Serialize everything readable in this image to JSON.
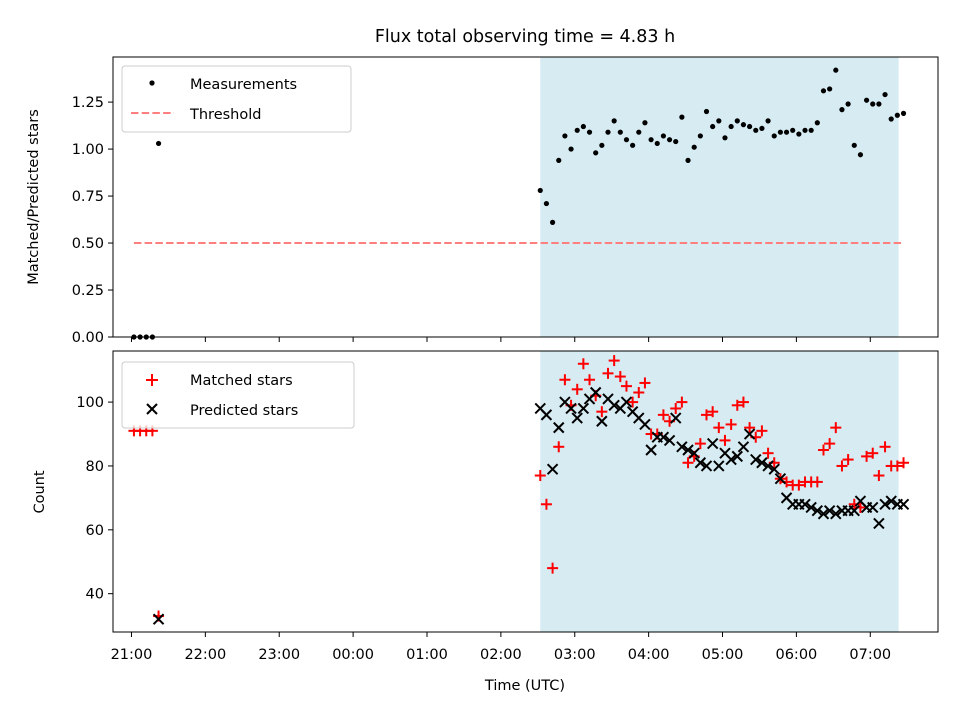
{
  "chart_data": {
    "type": "scatter",
    "title": "Flux total observing time = 4.83 h",
    "xlabel": "Time (UTC)",
    "x_ticks": [
      "21:00",
      "22:00",
      "23:00",
      "00:00",
      "01:00",
      "02:00",
      "03:00",
      "04:00",
      "05:00",
      "06:00",
      "07:00"
    ],
    "x_domain": [
      "20:45",
      "07:55"
    ],
    "highlight_span": {
      "start": "02:32",
      "end": "07:23",
      "color": "#add8e6"
    },
    "top_panel": {
      "ylabel": "Matched/Predicted stars",
      "ylim": [
        0,
        1.49
      ],
      "y_ticks": [
        "0.00",
        "0.25",
        "0.50",
        "0.75",
        "1.00",
        "1.25"
      ],
      "legend": {
        "placement": "top-left",
        "entries": [
          "Measurements",
          "Threshold"
        ]
      },
      "threshold": {
        "name": "Threshold",
        "value": 0.5,
        "x_start": "21:02",
        "x_end": "07:25",
        "color": "#ff7f7f"
      },
      "measurements": {
        "name": "Measurements",
        "color": "#000000",
        "points": [
          [
            "21:02",
            0.0
          ],
          [
            "21:07",
            0.0
          ],
          [
            "21:12",
            0.0
          ],
          [
            "21:17",
            0.0
          ],
          [
            "21:22",
            1.03
          ],
          [
            "02:32",
            0.78
          ],
          [
            "02:37",
            0.71
          ],
          [
            "02:42",
            0.61
          ],
          [
            "02:47",
            0.94
          ],
          [
            "02:52",
            1.07
          ],
          [
            "02:57",
            1.0
          ],
          [
            "03:02",
            1.1
          ],
          [
            "03:07",
            1.12
          ],
          [
            "03:12",
            1.09
          ],
          [
            "03:17",
            0.98
          ],
          [
            "03:22",
            1.02
          ],
          [
            "03:27",
            1.09
          ],
          [
            "03:32",
            1.15
          ],
          [
            "03:37",
            1.09
          ],
          [
            "03:42",
            1.05
          ],
          [
            "03:47",
            1.02
          ],
          [
            "03:52",
            1.09
          ],
          [
            "03:57",
            1.14
          ],
          [
            "04:02",
            1.05
          ],
          [
            "04:07",
            1.03
          ],
          [
            "04:12",
            1.07
          ],
          [
            "04:17",
            1.05
          ],
          [
            "04:22",
            1.04
          ],
          [
            "04:27",
            1.17
          ],
          [
            "04:32",
            0.94
          ],
          [
            "04:37",
            1.01
          ],
          [
            "04:42",
            1.07
          ],
          [
            "04:47",
            1.2
          ],
          [
            "04:52",
            1.12
          ],
          [
            "04:57",
            1.15
          ],
          [
            "05:02",
            1.06
          ],
          [
            "05:07",
            1.12
          ],
          [
            "05:12",
            1.15
          ],
          [
            "05:17",
            1.13
          ],
          [
            "05:22",
            1.12
          ],
          [
            "05:27",
            1.1
          ],
          [
            "05:32",
            1.11
          ],
          [
            "05:37",
            1.15
          ],
          [
            "05:42",
            1.07
          ],
          [
            "05:47",
            1.09
          ],
          [
            "05:52",
            1.09
          ],
          [
            "05:57",
            1.1
          ],
          [
            "06:02",
            1.08
          ],
          [
            "06:07",
            1.1
          ],
          [
            "06:12",
            1.1
          ],
          [
            "06:17",
            1.14
          ],
          [
            "06:22",
            1.31
          ],
          [
            "06:27",
            1.32
          ],
          [
            "06:32",
            1.42
          ],
          [
            "06:37",
            1.21
          ],
          [
            "06:42",
            1.24
          ],
          [
            "06:47",
            1.02
          ],
          [
            "06:52",
            0.97
          ],
          [
            "06:57",
            1.26
          ],
          [
            "07:02",
            1.24
          ],
          [
            "07:07",
            1.24
          ],
          [
            "07:12",
            1.29
          ],
          [
            "07:17",
            1.16
          ],
          [
            "07:22",
            1.18
          ],
          [
            "07:27",
            1.19
          ]
        ]
      }
    },
    "bottom_panel": {
      "ylabel": "Count",
      "ylim": [
        28,
        116
      ],
      "y_ticks": [
        "40",
        "60",
        "80",
        "100"
      ],
      "legend": {
        "placement": "top-left",
        "entries": [
          "Matched stars",
          "Predicted stars"
        ]
      },
      "matched": {
        "name": "Matched stars",
        "color": "#ff0000",
        "points": [
          [
            "21:02",
            91
          ],
          [
            "21:07",
            91
          ],
          [
            "21:12",
            91
          ],
          [
            "21:17",
            91
          ],
          [
            "21:22",
            33
          ],
          [
            "02:32",
            77
          ],
          [
            "02:37",
            68
          ],
          [
            "02:42",
            48
          ],
          [
            "02:47",
            86
          ],
          [
            "02:52",
            107
          ],
          [
            "02:57",
            99
          ],
          [
            "03:02",
            104
          ],
          [
            "03:07",
            112
          ],
          [
            "03:12",
            107
          ],
          [
            "03:17",
            102
          ],
          [
            "03:22",
            97
          ],
          [
            "03:27",
            109
          ],
          [
            "03:32",
            113
          ],
          [
            "03:37",
            108
          ],
          [
            "03:42",
            105
          ],
          [
            "03:47",
            100
          ],
          [
            "03:52",
            103
          ],
          [
            "03:57",
            106
          ],
          [
            "04:02",
            90
          ],
          [
            "04:07",
            90
          ],
          [
            "04:12",
            96
          ],
          [
            "04:17",
            94
          ],
          [
            "04:22",
            98
          ],
          [
            "04:27",
            100
          ],
          [
            "04:32",
            81
          ],
          [
            "04:37",
            83
          ],
          [
            "04:42",
            87
          ],
          [
            "04:47",
            96
          ],
          [
            "04:52",
            97
          ],
          [
            "04:57",
            92
          ],
          [
            "05:02",
            88
          ],
          [
            "05:07",
            93
          ],
          [
            "05:12",
            99
          ],
          [
            "05:17",
            100
          ],
          [
            "05:22",
            92
          ],
          [
            "05:27",
            89
          ],
          [
            "05:32",
            91
          ],
          [
            "05:37",
            84
          ],
          [
            "05:42",
            81
          ],
          [
            "05:47",
            76
          ],
          [
            "05:52",
            75
          ],
          [
            "05:57",
            74
          ],
          [
            "06:02",
            74
          ],
          [
            "06:07",
            75
          ],
          [
            "06:12",
            75
          ],
          [
            "06:17",
            75
          ],
          [
            "06:22",
            85
          ],
          [
            "06:27",
            87
          ],
          [
            "06:32",
            92
          ],
          [
            "06:37",
            80
          ],
          [
            "06:42",
            82
          ],
          [
            "06:47",
            68
          ],
          [
            "06:52",
            67
          ],
          [
            "06:57",
            83
          ],
          [
            "07:02",
            84
          ],
          [
            "07:07",
            77
          ],
          [
            "07:12",
            86
          ],
          [
            "07:17",
            80
          ],
          [
            "07:22",
            80
          ],
          [
            "07:27",
            81
          ]
        ]
      },
      "predicted": {
        "name": "Predicted stars",
        "color": "#000000",
        "points": [
          [
            "21:22",
            32
          ],
          [
            "02:32",
            98
          ],
          [
            "02:37",
            96
          ],
          [
            "02:42",
            79
          ],
          [
            "02:47",
            92
          ],
          [
            "02:52",
            100
          ],
          [
            "02:57",
            98
          ],
          [
            "03:02",
            95
          ],
          [
            "03:07",
            98
          ],
          [
            "03:12",
            101
          ],
          [
            "03:17",
            103
          ],
          [
            "03:22",
            94
          ],
          [
            "03:27",
            101
          ],
          [
            "03:32",
            99
          ],
          [
            "03:37",
            98
          ],
          [
            "03:42",
            100
          ],
          [
            "03:47",
            97
          ],
          [
            "03:52",
            95
          ],
          [
            "03:57",
            93
          ],
          [
            "04:02",
            85
          ],
          [
            "04:07",
            89
          ],
          [
            "04:12",
            89
          ],
          [
            "04:17",
            88
          ],
          [
            "04:22",
            95
          ],
          [
            "04:27",
            86
          ],
          [
            "04:32",
            85
          ],
          [
            "04:37",
            84
          ],
          [
            "04:42",
            81
          ],
          [
            "04:47",
            80
          ],
          [
            "04:52",
            87
          ],
          [
            "04:57",
            80
          ],
          [
            "05:02",
            84
          ],
          [
            "05:07",
            82
          ],
          [
            "05:12",
            83
          ],
          [
            "05:17",
            86
          ],
          [
            "05:22",
            90
          ],
          [
            "05:27",
            82
          ],
          [
            "05:32",
            81
          ],
          [
            "05:37",
            80
          ],
          [
            "05:42",
            79
          ],
          [
            "05:47",
            76
          ],
          [
            "05:52",
            70
          ],
          [
            "05:57",
            68
          ],
          [
            "06:02",
            68
          ],
          [
            "06:07",
            68
          ],
          [
            "06:12",
            67
          ],
          [
            "06:17",
            66
          ],
          [
            "06:22",
            65
          ],
          [
            "06:27",
            66
          ],
          [
            "06:32",
            65
          ],
          [
            "06:37",
            66
          ],
          [
            "06:42",
            66
          ],
          [
            "06:47",
            66
          ],
          [
            "06:52",
            69
          ],
          [
            "06:57",
            67
          ],
          [
            "07:02",
            67
          ],
          [
            "07:07",
            62
          ],
          [
            "07:12",
            68
          ],
          [
            "07:17",
            69
          ],
          [
            "07:22",
            68
          ],
          [
            "07:27",
            68
          ]
        ]
      }
    }
  }
}
